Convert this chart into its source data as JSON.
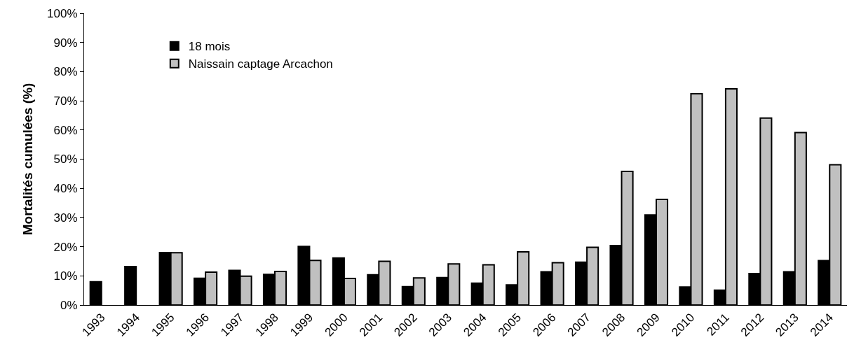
{
  "chart_data": {
    "type": "bar",
    "ylabel": "Mortalités cumulées (%)",
    "categories": [
      "1993",
      "1994",
      "1995",
      "1996",
      "1997",
      "1998",
      "1999",
      "2000",
      "2001",
      "2002",
      "2003",
      "2004",
      "2005",
      "2006",
      "2007",
      "2008",
      "2009",
      "2010",
      "2011",
      "2012",
      "2013",
      "2014"
    ],
    "series": [
      {
        "name": "18 mois",
        "color": "#000000",
        "values": [
          8,
          13.2,
          18,
          9.2,
          11.9,
          10.5,
          20.1,
          16.1,
          10.4,
          6.3,
          9.4,
          7.5,
          6.9,
          11.4,
          14.7,
          20.4,
          30.9,
          6.2,
          5.1,
          10.8,
          11.4,
          15.2
        ]
      },
      {
        "name": "Naissain captage Arcachon",
        "color": "#c0c0c0",
        "values": [
          null,
          null,
          17.9,
          11.3,
          9.9,
          11.5,
          15.3,
          9.1,
          15,
          9.3,
          14.1,
          13.8,
          18.2,
          14.5,
          19.8,
          45.8,
          36.2,
          72.4,
          74.1,
          64.1,
          59.1,
          48.1
        ]
      }
    ],
    "ylim": [
      0,
      100
    ],
    "yticks": [
      {
        "value": 0,
        "label": "0%"
      },
      {
        "value": 10,
        "label": "10%"
      },
      {
        "value": 20,
        "label": "20%"
      },
      {
        "value": 30,
        "label": "30%"
      },
      {
        "value": 40,
        "label": "40%"
      },
      {
        "value": 50,
        "label": "50%"
      },
      {
        "value": 60,
        "label": "60%"
      },
      {
        "value": 70,
        "label": "70%"
      },
      {
        "value": 80,
        "label": "80%"
      },
      {
        "value": 90,
        "label": "90%"
      },
      {
        "value": 100,
        "label": "100%"
      }
    ],
    "legend": "top left"
  }
}
